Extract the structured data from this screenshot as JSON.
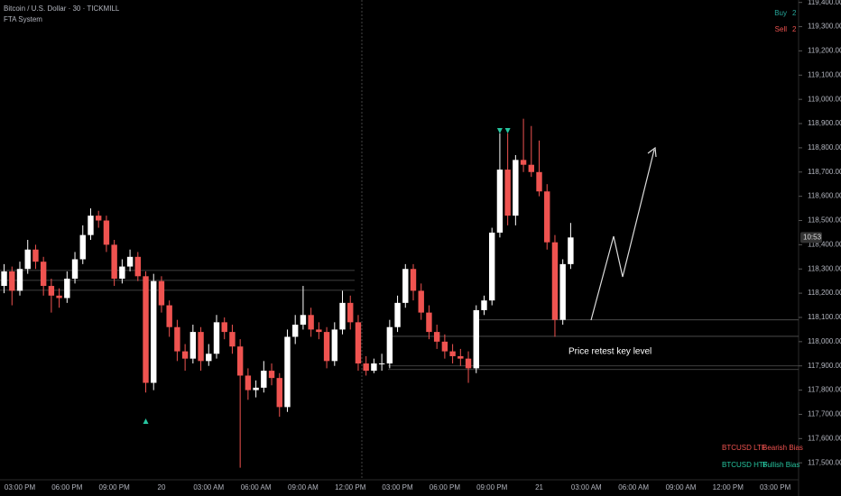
{
  "chart_data": {
    "type": "candlestick",
    "title": "Bitcoin / U.S. Dollar · 30 · TICKMILL",
    "subtitle": "FTA System",
    "signals": [
      {
        "label": "Buy",
        "count": "2",
        "color": "#26a69a"
      },
      {
        "label": "Sell",
        "count": "2",
        "color": "#ef5350"
      }
    ],
    "bias_table": [
      [
        "BTCUSD LTF",
        "Bearish Bias"
      ],
      [
        "BTCUSD HTF",
        "Bullish Bias"
      ]
    ],
    "annotation": "Price retest key level",
    "countdown": "10:53",
    "bull_color": "#ffffff",
    "bear_color": "#ef5350",
    "levels": [
      118294,
      118253,
      118212,
      118090,
      118022,
      117900,
      117885
    ],
    "categories": [
      null,
      null,
      "03:00 PM",
      null,
      null,
      null,
      null,
      null,
      "06:00 PM",
      null,
      null,
      null,
      null,
      null,
      "09:00 PM",
      null,
      null,
      null,
      null,
      null,
      "20",
      null,
      null,
      null,
      null,
      null,
      "03:00 AM",
      null,
      null,
      null,
      null,
      null,
      "06:00 AM",
      null,
      null,
      null,
      null,
      null,
      "09:00 AM",
      null,
      null,
      null,
      null,
      null,
      "12:00 PM",
      null,
      null,
      null,
      null,
      null,
      "03:00 PM",
      null,
      null,
      null,
      null,
      null,
      "06:00 PM",
      null,
      null,
      null,
      null,
      null,
      "09:00 PM",
      null,
      null,
      null,
      null,
      null,
      "21",
      null,
      null,
      null,
      null,
      null,
      "03:00 AM",
      null,
      null,
      null,
      null,
      null,
      "06:00 AM",
      null,
      null,
      null,
      null,
      null,
      "09:00 AM",
      null,
      null,
      null,
      null,
      null,
      "12:00 PM",
      null,
      null,
      null,
      null,
      null,
      "03:00 PM",
      null,
      null
    ],
    "open": [
      118230,
      118290,
      118210,
      118300,
      118380,
      118330,
      118230,
      118190,
      118180,
      118260,
      118340,
      118440,
      118520,
      118500,
      118400,
      118260,
      118310,
      118350,
      118270,
      117830,
      118250,
      118150,
      118060,
      117960,
      117930,
      118040,
      117920,
      117950,
      118080,
      118040,
      117980,
      117860,
      117800,
      117810,
      117880,
      117850,
      117730,
      118020,
      118070,
      118110,
      118050,
      118040,
      117920,
      118050,
      118160,
      118080,
      117910,
      117880,
      117910,
      117910,
      118060,
      118160,
      118300,
      118210,
      118120,
      118040,
      118000,
      117960,
      117940,
      117930,
      117890,
      118130,
      118170,
      118450,
      118710,
      118520,
      118750,
      118730,
      118700,
      118620,
      118410,
      118090,
      118320,
      null,
      null,
      null,
      null,
      null,
      null,
      null,
      null,
      null,
      null,
      null,
      null,
      null,
      null,
      null,
      null,
      null,
      null,
      null,
      null,
      null,
      null,
      null,
      null,
      null,
      null,
      null,
      null
    ],
    "high": [
      118320,
      118310,
      118330,
      118420,
      118400,
      118350,
      118260,
      118220,
      118290,
      118370,
      118480,
      118550,
      118540,
      118520,
      118420,
      118340,
      118380,
      118370,
      118290,
      118280,
      118270,
      118170,
      118090,
      117990,
      118070,
      118060,
      117990,
      118110,
      118100,
      118070,
      118010,
      117890,
      117840,
      117920,
      117910,
      117870,
      118050,
      118110,
      118230,
      118140,
      118080,
      118060,
      118080,
      118210,
      118190,
      118110,
      117940,
      117930,
      117950,
      118090,
      118190,
      118320,
      118320,
      118240,
      118150,
      118070,
      118030,
      117990,
      117970,
      117960,
      118150,
      118190,
      118470,
      118860,
      118860,
      118770,
      118920,
      118890,
      118830,
      118650,
      118440,
      118340,
      118490,
      null,
      null,
      null,
      null,
      null,
      null,
      null,
      null,
      null,
      null,
      null,
      null,
      null,
      null,
      null,
      null,
      null,
      null,
      null,
      null,
      null,
      null,
      null,
      null,
      null,
      null,
      null,
      null
    ],
    "low": [
      118200,
      118150,
      118190,
      118280,
      118300,
      118190,
      118120,
      118140,
      118160,
      118240,
      118320,
      118420,
      118470,
      118370,
      118230,
      118240,
      118290,
      118250,
      117790,
      117800,
      118120,
      118020,
      117920,
      117880,
      117910,
      117880,
      117900,
      117930,
      118010,
      117950,
      117480,
      117760,
      117770,
      117790,
      117820,
      117690,
      117710,
      117990,
      118050,
      118020,
      118010,
      117890,
      117900,
      118030,
      118050,
      117880,
      117860,
      117870,
      117880,
      117890,
      118040,
      118140,
      118170,
      118090,
      118010,
      117970,
      117930,
      117910,
      117900,
      117830,
      117870,
      118110,
      118150,
      118430,
      118480,
      118480,
      118700,
      118680,
      118600,
      118380,
      118020,
      118070,
      118300,
      null,
      null,
      null,
      null,
      null,
      null,
      null,
      null,
      null,
      null,
      null,
      null,
      null,
      null,
      null,
      null,
      null,
      null,
      null,
      null,
      null,
      null,
      null,
      null,
      null,
      null,
      null,
      null
    ],
    "close": [
      118290,
      118210,
      118300,
      118380,
      118330,
      118230,
      118190,
      118180,
      118260,
      118340,
      118440,
      118520,
      118500,
      118400,
      118260,
      118310,
      118350,
      118270,
      117830,
      118250,
      118150,
      118060,
      117960,
      117930,
      118040,
      117920,
      117950,
      118080,
      118040,
      117980,
      117860,
      117800,
      117810,
      117880,
      117850,
      117730,
      118020,
      118070,
      118110,
      118050,
      118040,
      117920,
      118050,
      118160,
      118080,
      117910,
      117880,
      117910,
      117910,
      118060,
      118160,
      118300,
      118210,
      118120,
      118040,
      118000,
      117960,
      117940,
      117930,
      117890,
      118130,
      118170,
      118450,
      118710,
      118520,
      118750,
      118730,
      118700,
      118620,
      118410,
      118090,
      118320,
      118430,
      null,
      null,
      null,
      null,
      null,
      null,
      null,
      null,
      null,
      null,
      null,
      null,
      null,
      null,
      null,
      null,
      null,
      null,
      null,
      null,
      null,
      null,
      null,
      null,
      null,
      null,
      null,
      null
    ],
    "ylim": [
      117430,
      119410
    ],
    "yticks": [
      {
        "value": 119400,
        "label": "119,400.00"
      },
      {
        "value": 119300,
        "label": "119,300.00"
      },
      {
        "value": 119200,
        "label": "119,200.00"
      },
      {
        "value": 119100,
        "label": "119,100.00"
      },
      {
        "value": 119000,
        "label": "119,000.00"
      },
      {
        "value": 118900,
        "label": "118,900.00"
      },
      {
        "value": 118800,
        "label": "118,800.00"
      },
      {
        "value": 118700,
        "label": "118,700.00"
      },
      {
        "value": 118600,
        "label": "118,600.00"
      },
      {
        "value": 118500,
        "label": "118,500.00"
      },
      {
        "value": 118400,
        "label": "118,400.00"
      },
      {
        "value": 118300,
        "label": "118,300.00"
      },
      {
        "value": 118200,
        "label": "118,200.00"
      },
      {
        "value": 118100,
        "label": "118,100.00"
      },
      {
        "value": 118000,
        "label": "118,000.00"
      },
      {
        "value": 117900,
        "label": "117,900.00"
      },
      {
        "value": 117800,
        "label": "117,800.00"
      },
      {
        "value": 117700,
        "label": "117,700.00"
      },
      {
        "value": 117600,
        "label": "117,600.00"
      },
      {
        "value": 117500,
        "label": "117,500.00"
      }
    ]
  }
}
